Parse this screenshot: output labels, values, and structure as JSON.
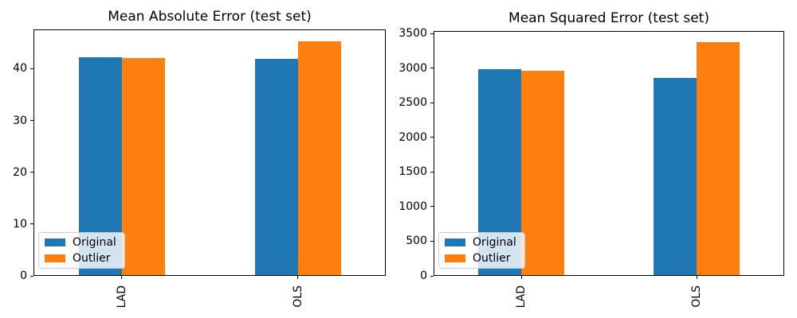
{
  "figure": {
    "background": "#ffffff"
  },
  "colors": {
    "series": [
      "#1f77b4",
      "#ff7f0e"
    ],
    "axis": "#000000",
    "text": "#000000",
    "legend_border": "#cccccc"
  },
  "chart_data": [
    {
      "type": "bar",
      "title": "Mean Absolute Error (test set)",
      "categories": [
        "LAD",
        "OLS"
      ],
      "series": [
        {
          "name": "Original",
          "values": [
            42.2,
            41.9
          ]
        },
        {
          "name": "Outlier",
          "values": [
            42.0,
            45.3
          ]
        }
      ],
      "xlabel": "",
      "ylabel": "",
      "ylim": [
        0,
        47.6
      ],
      "yticks": [
        0,
        10,
        20,
        30,
        40
      ],
      "grid": false,
      "legend_position": "lower left",
      "xtick_rotation": 90
    },
    {
      "type": "bar",
      "title": "Mean Squared Error (test set)",
      "categories": [
        "LAD",
        "OLS"
      ],
      "series": [
        {
          "name": "Original",
          "values": [
            2990,
            2860
          ]
        },
        {
          "name": "Outlier",
          "values": [
            2965,
            3375
          ]
        }
      ],
      "xlabel": "",
      "ylabel": "",
      "ylim": [
        0,
        3540
      ],
      "yticks": [
        0,
        500,
        1000,
        1500,
        2000,
        2500,
        3000,
        3500
      ],
      "grid": false,
      "legend_position": "lower left",
      "xtick_rotation": 90
    }
  ]
}
